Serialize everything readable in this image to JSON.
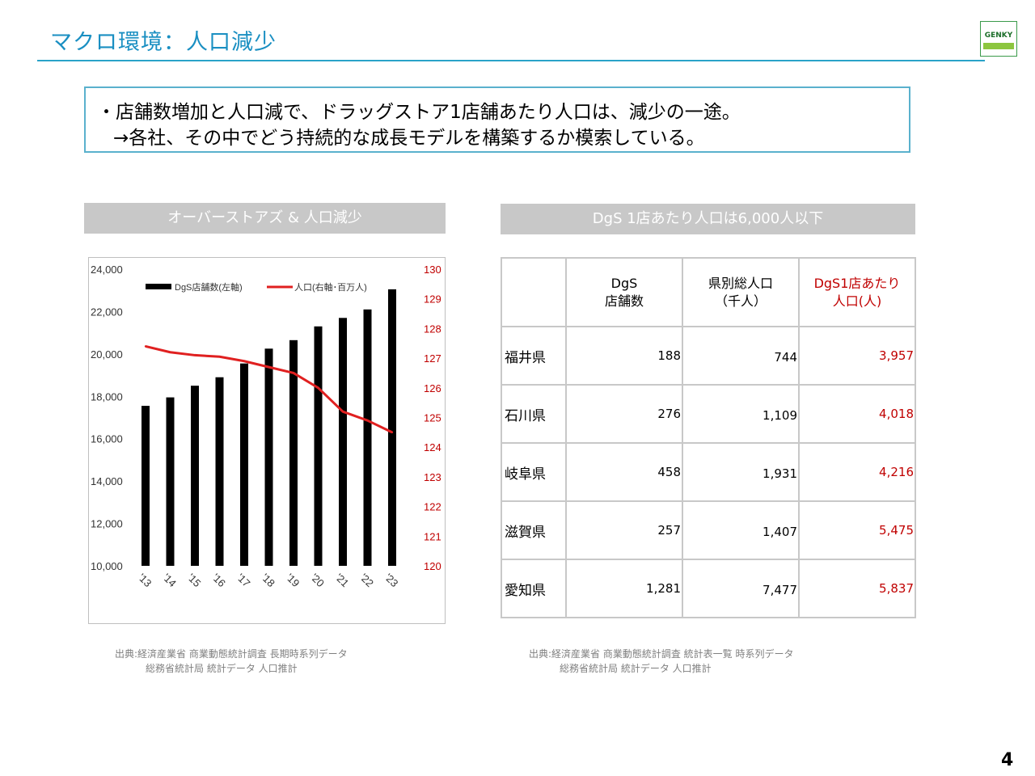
{
  "header": {
    "title": "マクロ環境：人口減少",
    "logo_text": "GENKY"
  },
  "lead": {
    "line1": "・店舗数増加と人口減で、ドラッグストア1店舗あたり人口は、減少の一途。",
    "line2": "→各社、その中でどう持続的な成長モデルを構築するか模索している。"
  },
  "left_panel": {
    "heading": "オーバーストアズ & 人口減少",
    "source_line1": "出典:経済産業省 商業動態統計調査 長期時系列データ",
    "source_line2": "総務省統計局 統計データ 人口推計"
  },
  "right_panel": {
    "heading": "DgS 1店あたり人口は6,000人以下",
    "source_line1": "出典:経済産業省 商業動態統計調査 統計表一覧 時系列データ",
    "source_line2": "総務省統計局 統計データ 人口推計"
  },
  "chart_data": {
    "type": "bar",
    "categories": [
      "'13",
      "'14",
      "'15",
      "'16",
      "'17",
      "'18",
      "'19",
      "'20",
      "'21",
      "'22",
      "'23"
    ],
    "series": [
      {
        "name": "DgS店舗数(左軸)",
        "type": "bar",
        "axis": "left",
        "color": "#000000",
        "values": [
          17550,
          17950,
          18500,
          18900,
          19550,
          20250,
          20650,
          21300,
          21700,
          22100,
          23050
        ]
      },
      {
        "name": "人口(右軸･百万人)",
        "type": "line",
        "axis": "right",
        "color": "#e02020",
        "values": [
          127.4,
          127.2,
          127.1,
          127.05,
          126.9,
          126.7,
          126.5,
          126.0,
          125.2,
          124.9,
          124.5
        ]
      }
    ],
    "y_left": {
      "min": 10000,
      "max": 24000,
      "ticks": [
        "10,000",
        "12,000",
        "14,000",
        "16,000",
        "18,000",
        "20,000",
        "22,000",
        "24,000"
      ]
    },
    "y_right": {
      "min": 120,
      "max": 130,
      "ticks": [
        "120",
        "121",
        "122",
        "123",
        "124",
        "125",
        "126",
        "127",
        "128",
        "129",
        "130"
      ],
      "color": "#c00000"
    },
    "legend_position": "top",
    "grid": false
  },
  "table": {
    "headers": [
      "",
      "DgS\n店舗数",
      "県別総人口\n（千人）",
      "DgS1店あたり\n人口(人)"
    ],
    "rows": [
      {
        "pref": "福井県",
        "stores": "188",
        "population": "744",
        "per_store": "3,957"
      },
      {
        "pref": "石川県",
        "stores": "276",
        "population": "1,109",
        "per_store": "4,018"
      },
      {
        "pref": "岐阜県",
        "stores": "458",
        "population": "1,931",
        "per_store": "4,216"
      },
      {
        "pref": "滋賀県",
        "stores": "257",
        "population": "1,407",
        "per_store": "5,475"
      },
      {
        "pref": "愛知県",
        "stores": "1,281",
        "population": "7,477",
        "per_store": "5,837"
      }
    ]
  },
  "page_number": "4"
}
